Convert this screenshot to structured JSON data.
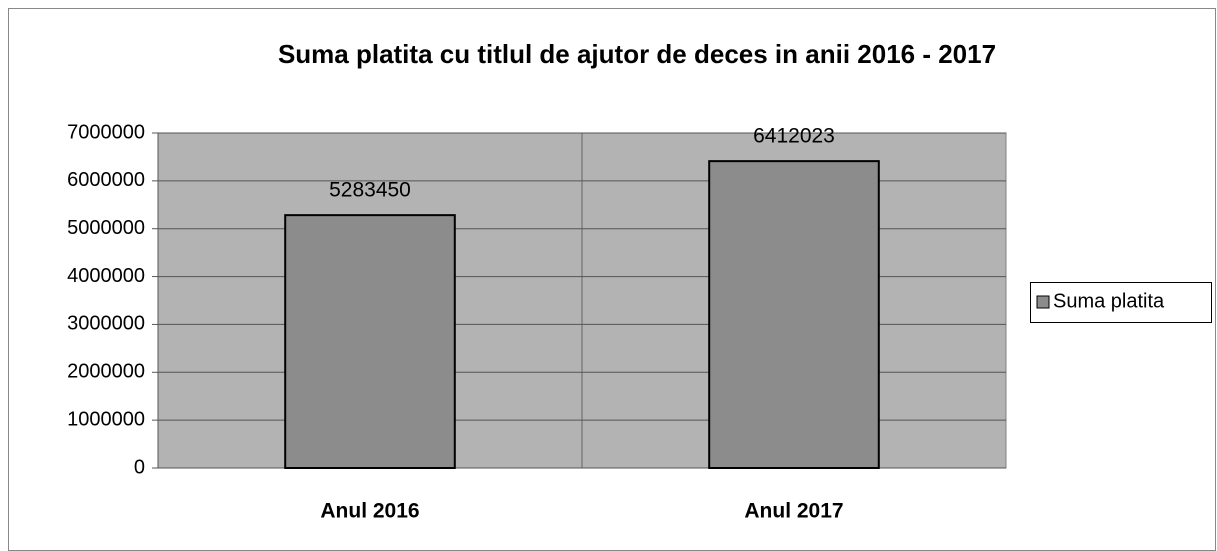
{
  "chart_data": {
    "type": "bar",
    "title": "Suma platita cu titlul de ajutor de deces in anii 2016 - 2017",
    "categories": [
      "Anul 2016",
      "Anul 2017"
    ],
    "series": [
      {
        "name": "Suma platita",
        "color": "#8c8c8c",
        "values": [
          5283450,
          6412023
        ]
      }
    ],
    "ylim": [
      0,
      7000000
    ],
    "yticks": [
      0,
      1000000,
      2000000,
      3000000,
      4000000,
      5000000,
      6000000,
      7000000
    ],
    "grid": true,
    "legend": "right"
  }
}
